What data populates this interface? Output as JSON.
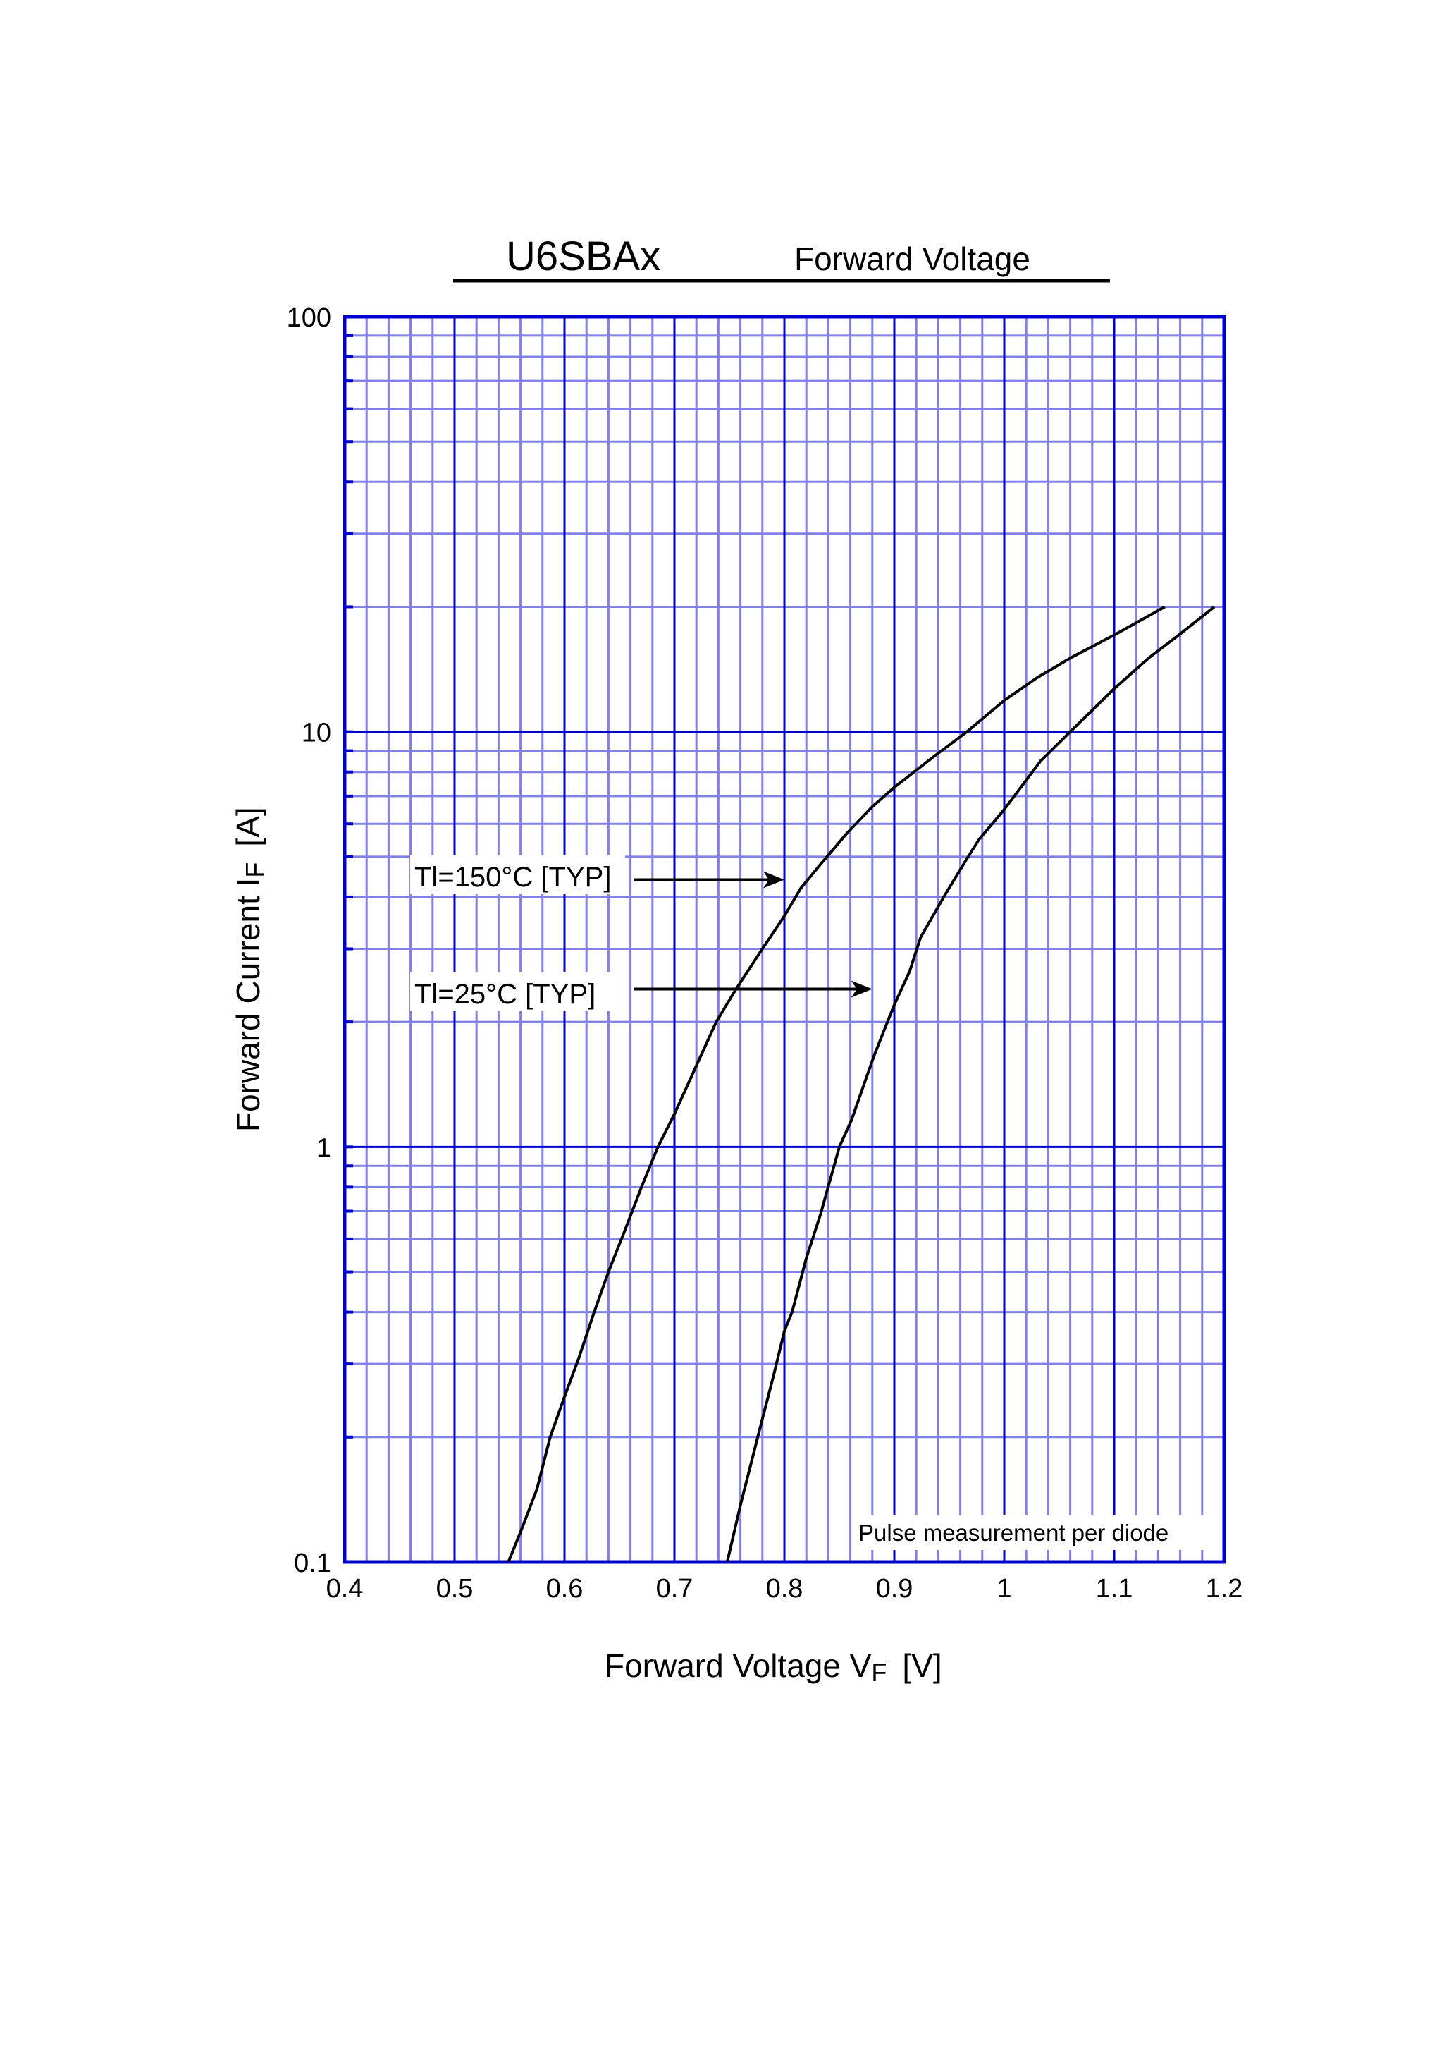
{
  "header": {
    "part_number": "U6SBAx",
    "chart_title": "Forward Voltage"
  },
  "axes": {
    "x_label": "Forward Voltage  V",
    "x_label_subscript": "F",
    "x_label_unit": "[V]",
    "y_label": "Forward Current  I",
    "y_label_subscript": "F",
    "y_label_unit": "[A]",
    "x_ticks": [
      "0.4",
      "0.5",
      "0.6",
      "0.7",
      "0.8",
      "0.9",
      "1",
      "1.1",
      "1.2"
    ],
    "y_ticks": [
      "0.1",
      "1",
      "10",
      "100"
    ]
  },
  "annotations": {
    "curve_150_label": "Tl=150°C [TYP]",
    "curve_25_label": "Tl=25°C [TYP]",
    "note": "Pulse measurement per diode"
  },
  "colors": {
    "major_grid": "#0000cc",
    "minor_grid": "#8080e6",
    "curve": "#000000",
    "text": "#000000"
  },
  "chart_data": {
    "type": "line",
    "title": "U6SBAx Forward Voltage",
    "xlabel": "Forward Voltage VF [V]",
    "ylabel": "Forward Current IF [A]",
    "xlim": [
      0.4,
      1.2
    ],
    "ylim": [
      0.1,
      100
    ],
    "yscale": "log",
    "grid": true,
    "legend_position": "inline annotations with arrows",
    "annotations": [
      "Pulse measurement per diode"
    ],
    "series": [
      {
        "name": "Tl=150°C [TYP]",
        "x": [
          0.549,
          0.561,
          0.575,
          0.587,
          0.6,
          0.613,
          0.627,
          0.64,
          0.655,
          0.67,
          0.685,
          0.7,
          0.72,
          0.738,
          0.756,
          0.78,
          0.8,
          0.815,
          0.833,
          0.857,
          0.88,
          0.9,
          0.938,
          0.966,
          1.0,
          1.03,
          1.061,
          1.1,
          1.146
        ],
        "y": [
          0.1,
          0.12,
          0.15,
          0.2,
          0.25,
          0.31,
          0.4,
          0.5,
          0.63,
          0.8,
          1.0,
          1.2,
          1.57,
          2.0,
          2.4,
          3.0,
          3.6,
          4.2,
          4.8,
          5.7,
          6.6,
          7.35,
          8.8,
          10.0,
          11.9,
          13.5,
          15.1,
          17.1,
          20.0
        ]
      },
      {
        "name": "Tl=25°C [TYP]",
        "x": [
          0.748,
          0.76,
          0.779,
          0.79,
          0.8,
          0.807,
          0.82,
          0.833,
          0.85,
          0.861,
          0.882,
          0.9,
          0.914,
          0.924,
          0.945,
          0.963,
          0.977,
          1.0,
          1.033,
          1.06,
          1.1,
          1.132,
          1.16,
          1.191
        ],
        "y": [
          0.1,
          0.137,
          0.216,
          0.28,
          0.36,
          0.4,
          0.54,
          0.69,
          1.0,
          1.16,
          1.67,
          2.2,
          2.65,
          3.2,
          4.0,
          4.8,
          5.5,
          6.5,
          8.5,
          10.0,
          12.7,
          15.1,
          17.2,
          20.0
        ]
      }
    ],
    "annotation_arrows": [
      {
        "label": "Tl=150°C [TYP]",
        "y": 4.4,
        "x_tip": 0.8
      },
      {
        "label": "Tl=25°C [TYP]",
        "y": 2.4,
        "x_tip": 0.88
      }
    ]
  }
}
